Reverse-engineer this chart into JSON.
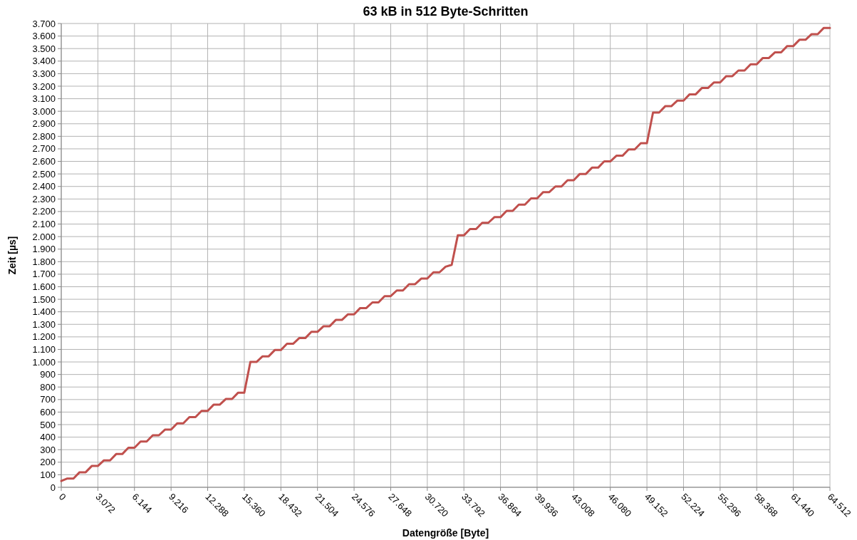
{
  "chart_data": {
    "type": "line",
    "title": "63 kB in 512 Byte-Schritten",
    "xlabel": "Datengröße [Byte]",
    "ylabel": "Zeit [µs]",
    "x": [
      0,
      512,
      1024,
      1536,
      2048,
      2560,
      3072,
      3584,
      4096,
      4608,
      5120,
      5632,
      6144,
      6656,
      7168,
      7680,
      8192,
      8704,
      9216,
      9728,
      10240,
      10752,
      11264,
      11776,
      12288,
      12800,
      13312,
      13824,
      14336,
      14848,
      15360,
      15872,
      16384,
      16896,
      17408,
      17920,
      18432,
      18944,
      19456,
      19968,
      20480,
      20992,
      21504,
      22016,
      22528,
      23040,
      23552,
      24064,
      24576,
      25088,
      25600,
      26112,
      26624,
      27136,
      27648,
      28160,
      28672,
      29184,
      29696,
      30208,
      30720,
      31232,
      31744,
      32256,
      32768,
      33280,
      33792,
      34304,
      34816,
      35328,
      35840,
      36352,
      36864,
      37376,
      37888,
      38400,
      38912,
      39424,
      39936,
      40448,
      40960,
      41472,
      41984,
      42496,
      43008,
      43520,
      44032,
      44544,
      45056,
      45568,
      46080,
      46592,
      47104,
      47616,
      48128,
      48640,
      49152,
      49664,
      50176,
      50688,
      51200,
      51712,
      52224,
      52736,
      53248,
      53760,
      54272,
      54784,
      55296,
      55808,
      56320,
      56832,
      57344,
      57856,
      58368,
      58880,
      59392,
      59904,
      60416,
      60928,
      61440,
      61952,
      62464,
      62976,
      63488,
      64000,
      64512
    ],
    "series": [
      {
        "color": "#c0504d",
        "values": [
          50,
          70,
          70,
          120,
          120,
          170,
          170,
          215,
          215,
          265,
          265,
          315,
          315,
          365,
          365,
          415,
          415,
          460,
          460,
          510,
          510,
          560,
          560,
          610,
          610,
          660,
          660,
          705,
          705,
          755,
          755,
          1000,
          1000,
          1045,
          1045,
          1095,
          1095,
          1145,
          1145,
          1190,
          1190,
          1240,
          1240,
          1285,
          1285,
          1335,
          1335,
          1380,
          1380,
          1430,
          1430,
          1475,
          1475,
          1525,
          1525,
          1570,
          1570,
          1620,
          1620,
          1665,
          1665,
          1715,
          1715,
          1760,
          1775,
          2010,
          2010,
          2060,
          2060,
          2110,
          2110,
          2155,
          2155,
          2205,
          2205,
          2255,
          2255,
          2305,
          2305,
          2355,
          2355,
          2400,
          2400,
          2450,
          2450,
          2500,
          2500,
          2550,
          2550,
          2600,
          2600,
          2645,
          2645,
          2695,
          2695,
          2745,
          2745,
          2990,
          2990,
          3040,
          3040,
          3085,
          3085,
          3135,
          3135,
          3185,
          3185,
          3230,
          3230,
          3280,
          3280,
          3325,
          3325,
          3375,
          3375,
          3425,
          3425,
          3470,
          3470,
          3520,
          3520,
          3570,
          3570,
          3615,
          3615,
          3665,
          3665
        ]
      }
    ],
    "xlim": [
      0,
      64512
    ],
    "xticks": [
      0,
      {
        "value": 3072,
        "label": "3.072"
      },
      {
        "value": 6144,
        "label": "6.144"
      },
      {
        "value": 9216,
        "label": "9.216"
      },
      {
        "value": 12288,
        "label": "12.288"
      },
      {
        "value": 15360,
        "label": "15.360"
      },
      {
        "value": 18432,
        "label": "18.432"
      },
      {
        "value": 21504,
        "label": "21.504"
      },
      {
        "value": 24576,
        "label": "24.576"
      },
      {
        "value": 27648,
        "label": "27.648"
      },
      {
        "value": 30720,
        "label": "30.720"
      },
      {
        "value": 33792,
        "label": "33.792"
      },
      {
        "value": 36864,
        "label": "36.864"
      },
      {
        "value": 39936,
        "label": "39.936"
      },
      {
        "value": 43008,
        "label": "43.008"
      },
      {
        "value": 46080,
        "label": "46.080"
      },
      {
        "value": 49152,
        "label": "49.152"
      },
      {
        "value": 52224,
        "label": "52.224"
      },
      {
        "value": 55296,
        "label": "55.296"
      },
      {
        "value": 58368,
        "label": "58.368"
      },
      {
        "value": 61440,
        "label": "61.440"
      },
      {
        "value": 64512,
        "label": "64.512"
      }
    ],
    "ylim": [
      0,
      3700
    ],
    "yticks": [
      0,
      100,
      200,
      300,
      400,
      500,
      600,
      700,
      800,
      900,
      {
        "value": 1000,
        "label": "1.000"
      },
      {
        "value": 1100,
        "label": "1.100"
      },
      {
        "value": 1200,
        "label": "1.200"
      },
      {
        "value": 1300,
        "label": "1.300"
      },
      {
        "value": 1400,
        "label": "1.400"
      },
      {
        "value": 1500,
        "label": "1.500"
      },
      {
        "value": 1600,
        "label": "1.600"
      },
      {
        "value": 1700,
        "label": "1.700"
      },
      {
        "value": 1800,
        "label": "1.800"
      },
      {
        "value": 1900,
        "label": "1.900"
      },
      {
        "value": 2000,
        "label": "2.000"
      },
      {
        "value": 2100,
        "label": "2.100"
      },
      {
        "value": 2200,
        "label": "2.200"
      },
      {
        "value": 2300,
        "label": "2.300"
      },
      {
        "value": 2400,
        "label": "2.400"
      },
      {
        "value": 2500,
        "label": "2.500"
      },
      {
        "value": 2600,
        "label": "2.600"
      },
      {
        "value": 2700,
        "label": "2.700"
      },
      {
        "value": 2800,
        "label": "2.800"
      },
      {
        "value": 2900,
        "label": "2.900"
      },
      {
        "value": 3000,
        "label": "3.000"
      },
      {
        "value": 3100,
        "label": "3.100"
      },
      {
        "value": 3200,
        "label": "3.200"
      },
      {
        "value": 3300,
        "label": "3.300"
      },
      {
        "value": 3400,
        "label": "3.400"
      },
      {
        "value": 3500,
        "label": "3.500"
      },
      {
        "value": 3600,
        "label": "3.600"
      },
      {
        "value": 3700,
        "label": "3.700"
      }
    ],
    "grid": true,
    "marker": "none",
    "line_style": "solid"
  }
}
